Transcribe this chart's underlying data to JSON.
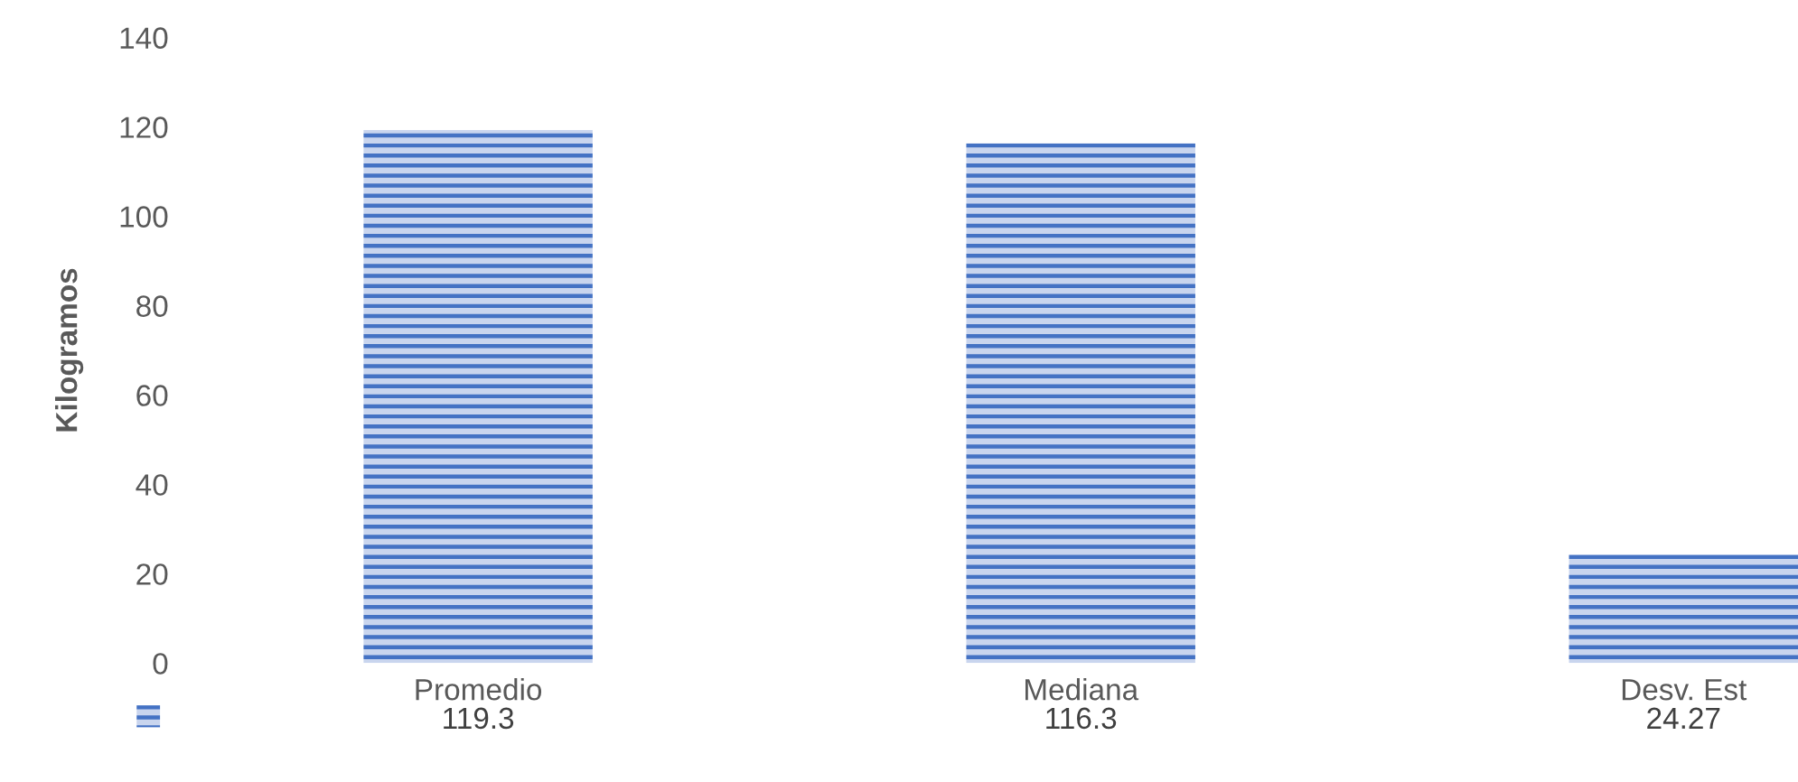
{
  "chart_data": {
    "type": "bar",
    "ylabel": "Kilogramos",
    "categories": [
      "Promedio",
      "Mediana",
      "Desv. Est"
    ],
    "values": [
      119.3,
      116.3,
      24.27
    ],
    "color": "#4472c4",
    "ylim": [
      0,
      140
    ],
    "yticks": [
      0,
      20,
      40,
      60,
      80,
      100,
      120,
      140
    ],
    "grid": false,
    "legend": false,
    "data_labels": true
  }
}
